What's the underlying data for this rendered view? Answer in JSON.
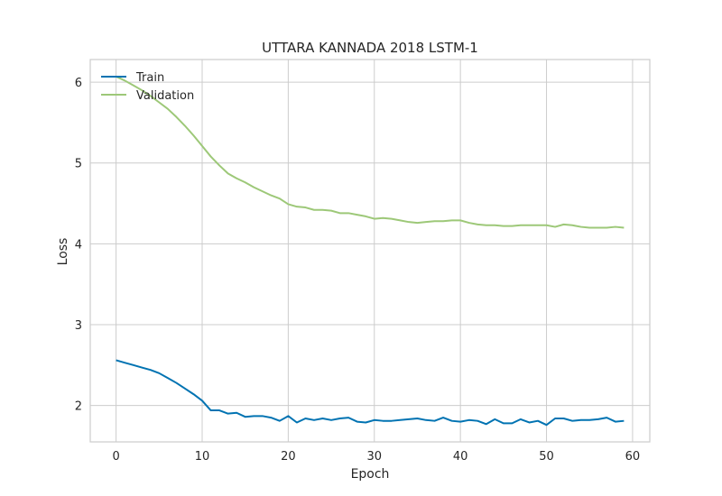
{
  "chart_data": {
    "type": "line",
    "title": "UTTARA KANNADA 2018 LSTM-1",
    "xlabel": "Epoch",
    "ylabel": "Loss",
    "xlim": [
      -3,
      62
    ],
    "ylim": [
      1.55,
      6.28
    ],
    "xticks": [
      0,
      10,
      20,
      30,
      40,
      50,
      60
    ],
    "yticks": [
      2,
      3,
      4,
      5,
      6
    ],
    "grid": true,
    "legend_position": "top-left",
    "x": [
      0,
      1,
      2,
      3,
      4,
      5,
      6,
      7,
      8,
      9,
      10,
      11,
      12,
      13,
      14,
      15,
      16,
      17,
      18,
      19,
      20,
      21,
      22,
      23,
      24,
      25,
      26,
      27,
      28,
      29,
      30,
      31,
      32,
      33,
      34,
      35,
      36,
      37,
      38,
      39,
      40,
      41,
      42,
      43,
      44,
      45,
      46,
      47,
      48,
      49,
      50,
      51,
      52,
      53,
      54,
      55,
      56,
      57,
      58,
      59
    ],
    "series": [
      {
        "name": "Train",
        "color": "#0173b2",
        "values": [
          2.56,
          2.53,
          2.5,
          2.47,
          2.44,
          2.4,
          2.34,
          2.28,
          2.21,
          2.14,
          2.06,
          1.94,
          1.94,
          1.9,
          1.91,
          1.86,
          1.87,
          1.87,
          1.85,
          1.81,
          1.87,
          1.79,
          1.84,
          1.82,
          1.84,
          1.82,
          1.84,
          1.85,
          1.8,
          1.79,
          1.82,
          1.81,
          1.81,
          1.82,
          1.83,
          1.84,
          1.82,
          1.81,
          1.85,
          1.81,
          1.8,
          1.82,
          1.81,
          1.77,
          1.83,
          1.78,
          1.78,
          1.83,
          1.79,
          1.81,
          1.76,
          1.84,
          1.84,
          1.81,
          1.82,
          1.82,
          1.83,
          1.85,
          1.8,
          1.81
        ]
      },
      {
        "name": "Validation",
        "color": "#9dc878",
        "values": [
          6.07,
          6.02,
          5.96,
          5.9,
          5.83,
          5.75,
          5.67,
          5.57,
          5.46,
          5.34,
          5.21,
          5.08,
          4.97,
          4.87,
          4.81,
          4.76,
          4.7,
          4.65,
          4.6,
          4.56,
          4.49,
          4.46,
          4.45,
          4.42,
          4.42,
          4.41,
          4.38,
          4.38,
          4.36,
          4.34,
          4.31,
          4.32,
          4.31,
          4.29,
          4.27,
          4.26,
          4.27,
          4.28,
          4.28,
          4.29,
          4.29,
          4.26,
          4.24,
          4.23,
          4.23,
          4.22,
          4.22,
          4.23,
          4.23,
          4.23,
          4.23,
          4.21,
          4.24,
          4.23,
          4.21,
          4.2,
          4.2,
          4.2,
          4.21,
          4.2
        ]
      }
    ]
  }
}
